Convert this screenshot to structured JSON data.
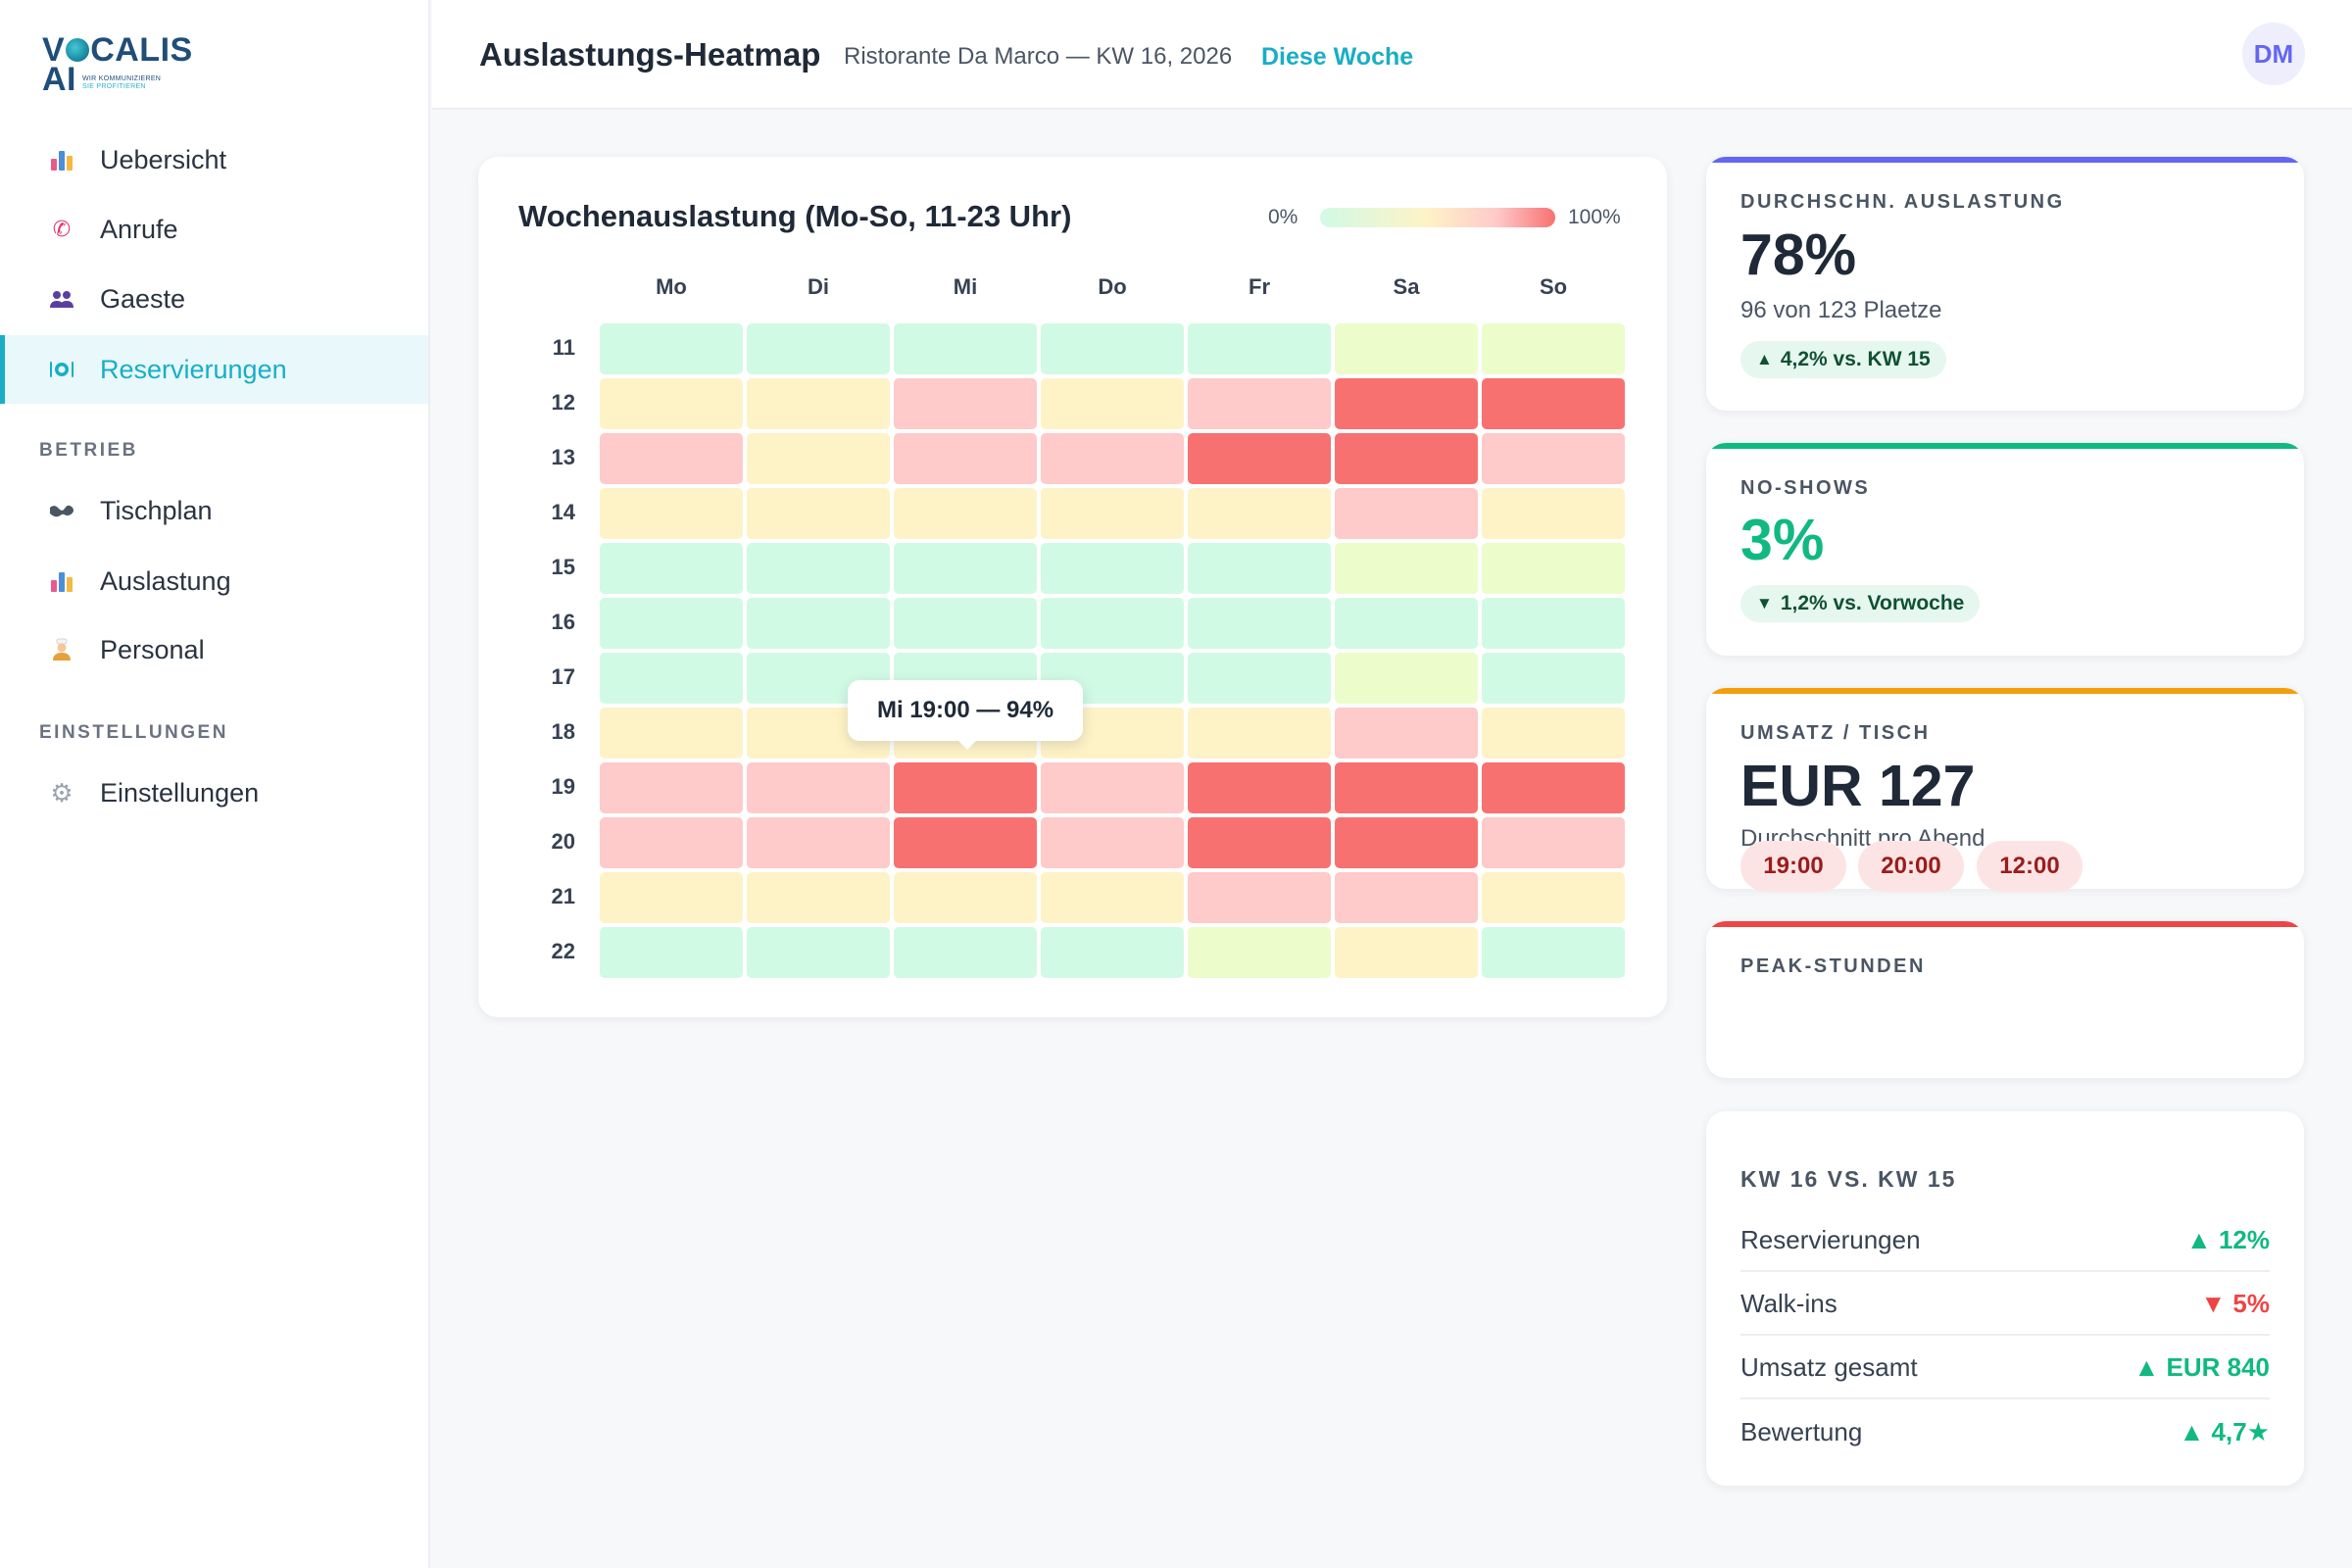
{
  "brand": {
    "logo_line1": "VOCALIS",
    "logo_line2": "AI",
    "tagline_1": "WIR KOMMUNIZIEREN",
    "tagline_2": "SIE PROFITIEREN"
  },
  "sidebar": {
    "items": [
      {
        "label": "Uebersicht",
        "icon": "bar-chart-icon"
      },
      {
        "label": "Anrufe",
        "icon": "phone-icon"
      },
      {
        "label": "Gaeste",
        "icon": "guests-icon"
      },
      {
        "label": "Reservierungen",
        "icon": "plate-icon",
        "active": true
      }
    ],
    "section_betrieb": "BETRIEB",
    "betrieb_items": [
      {
        "label": "Tischplan",
        "icon": "map-icon"
      },
      {
        "label": "Auslastung",
        "icon": "bar-chart-icon"
      },
      {
        "label": "Personal",
        "icon": "staff-icon"
      }
    ],
    "section_einstellungen": "EINSTELLUNGEN",
    "einstellungen_items": [
      {
        "label": "Einstellungen",
        "icon": "gear-icon"
      }
    ]
  },
  "header": {
    "title": "Auslastungs-Heatmap",
    "subtitle": "Ristorante Da Marco — KW 16, 2026",
    "week_link": "Diese Woche",
    "avatar": "DM"
  },
  "heatmap": {
    "title": "Wochenauslastung (Mo-So, 11-23 Uhr)",
    "legend_min": "0%",
    "legend_max": "100%",
    "tooltip": "Mi 19:00 — 94%"
  },
  "chart_data": {
    "type": "heatmap",
    "title": "Wochenauslastung (Mo-So, 11-23 Uhr)",
    "x": [
      "Mo",
      "Di",
      "Mi",
      "Do",
      "Fr",
      "Sa",
      "So"
    ],
    "y": [
      "11",
      "12",
      "13",
      "14",
      "15",
      "16",
      "17",
      "18",
      "19",
      "20",
      "21",
      "22"
    ],
    "scale": {
      "min": 0,
      "max": 100,
      "unit": "%"
    },
    "levels": {
      "low": "#d1fae5",
      "mid_low": "#ecfccb",
      "mid": "#fef3c7",
      "high": "#fecaca",
      "peak": "#f87171"
    },
    "values": [
      [
        "low",
        "low",
        "low",
        "low",
        "low",
        "mid_low",
        "mid_low"
      ],
      [
        "mid",
        "mid",
        "high",
        "mid",
        "high",
        "peak",
        "peak"
      ],
      [
        "high",
        "mid",
        "high",
        "high",
        "peak",
        "peak",
        "high"
      ],
      [
        "mid",
        "mid",
        "mid",
        "mid",
        "mid",
        "high",
        "mid"
      ],
      [
        "low",
        "low",
        "low",
        "low",
        "low",
        "mid_low",
        "mid_low"
      ],
      [
        "low",
        "low",
        "low",
        "low",
        "low",
        "low",
        "low"
      ],
      [
        "low",
        "low",
        "low",
        "low",
        "low",
        "mid_low",
        "low"
      ],
      [
        "mid",
        "mid",
        "mid",
        "mid",
        "mid",
        "high",
        "mid"
      ],
      [
        "high",
        "high",
        "peak",
        "high",
        "peak",
        "peak",
        "peak"
      ],
      [
        "high",
        "high",
        "peak",
        "high",
        "peak",
        "peak",
        "high"
      ],
      [
        "mid",
        "mid",
        "mid",
        "mid",
        "high",
        "high",
        "mid"
      ],
      [
        "low",
        "low",
        "low",
        "low",
        "mid_low",
        "mid",
        "low"
      ]
    ],
    "highlight": {
      "day": "Mi",
      "hour": "19",
      "label": "Mi 19:00 — 94%",
      "value": 94
    }
  },
  "stats": {
    "avg": {
      "label": "DURCHSCHN. AUSLASTUNG",
      "value": "78%",
      "sub": "96 von 123 Plaetze",
      "delta": "4,2% vs. KW 15",
      "color": "#6366f1"
    },
    "noshow": {
      "label": "NO-SHOWS",
      "value": "3%",
      "delta": "1,2% vs. Vorwoche",
      "color": "#10b981"
    },
    "umsatz": {
      "label": "UMSATZ / TISCH",
      "value": "EUR 127",
      "sub": "Durchschnitt pro Abend",
      "color": "#f59e0b"
    },
    "peak": {
      "label": "PEAK-STUNDEN",
      "hours": [
        "19:00",
        "20:00",
        "12:00"
      ],
      "color": "#ef4444"
    }
  },
  "compare": {
    "title": "KW 16 VS. KW 15",
    "rows": [
      {
        "label": "Reservierungen",
        "value": "12%",
        "dir": "up"
      },
      {
        "label": "Walk-ins",
        "value": "5%",
        "dir": "down"
      },
      {
        "label": "Umsatz gesamt",
        "value": "EUR 840",
        "dir": "up"
      },
      {
        "label": "Bewertung",
        "value": "4,7★",
        "dir": "up"
      }
    ]
  }
}
